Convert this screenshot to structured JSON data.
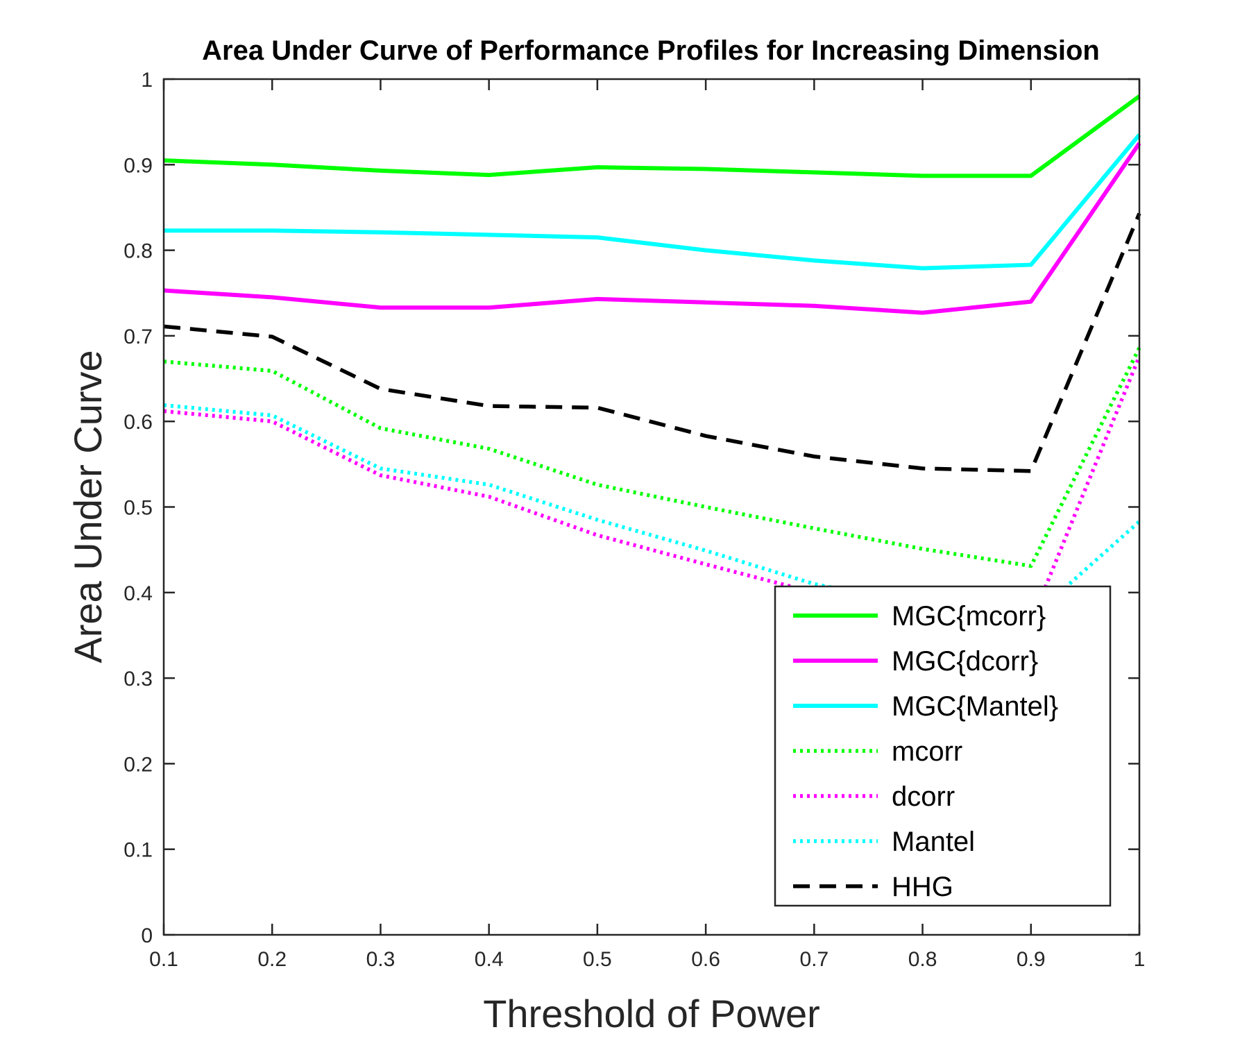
{
  "chart_data": {
    "type": "line",
    "title": "Area Under Curve of Performance Profiles for Increasing Dimension",
    "xlabel": "Threshold of Power",
    "ylabel": "Area Under Curve",
    "xlim": [
      0.1,
      1
    ],
    "ylim": [
      0,
      1
    ],
    "x": [
      0.1,
      0.2,
      0.3,
      0.4,
      0.5,
      0.6,
      0.7,
      0.8,
      0.9,
      1.0
    ],
    "xticks": [
      "0.1",
      "0.2",
      "0.3",
      "0.4",
      "0.5",
      "0.6",
      "0.7",
      "0.8",
      "0.9",
      "1"
    ],
    "yticks": [
      "0",
      "0.1",
      "0.2",
      "0.3",
      "0.4",
      "0.5",
      "0.6",
      "0.7",
      "0.8",
      "0.9",
      "1"
    ],
    "grid": false,
    "legend_position": "bottom-right",
    "series": [
      {
        "name": "MGC{mcorr}",
        "color": "#00ff00",
        "style": "solid",
        "values": [
          0.905,
          0.9,
          0.893,
          0.888,
          0.897,
          0.895,
          0.891,
          0.887,
          0.887,
          0.98
        ]
      },
      {
        "name": "MGC{dcorr}",
        "color": "#ff00ff",
        "style": "solid",
        "values": [
          0.753,
          0.745,
          0.733,
          0.733,
          0.743,
          0.739,
          0.735,
          0.727,
          0.74,
          0.925
        ]
      },
      {
        "name": "MGC{Mantel}",
        "color": "#00ffff",
        "style": "solid",
        "values": [
          0.823,
          0.823,
          0.821,
          0.818,
          0.815,
          0.8,
          0.788,
          0.779,
          0.783,
          0.935
        ]
      },
      {
        "name": "mcorr",
        "color": "#00ff00",
        "style": "dotted",
        "values": [
          0.67,
          0.659,
          0.592,
          0.568,
          0.526,
          0.5,
          0.475,
          0.451,
          0.431,
          0.686
        ]
      },
      {
        "name": "dcorr",
        "color": "#ff00ff",
        "style": "dotted",
        "values": [
          0.612,
          0.6,
          0.537,
          0.512,
          0.467,
          0.433,
          0.4,
          0.375,
          0.365,
          0.676
        ]
      },
      {
        "name": "Mantel",
        "color": "#00ffff",
        "style": "dotted",
        "values": [
          0.619,
          0.607,
          0.545,
          0.526,
          0.485,
          0.449,
          0.41,
          0.385,
          0.37,
          0.483
        ]
      },
      {
        "name": "HHG",
        "color": "#000000",
        "style": "dashed",
        "values": [
          0.711,
          0.699,
          0.638,
          0.618,
          0.616,
          0.583,
          0.559,
          0.545,
          0.542,
          0.843
        ]
      }
    ]
  }
}
